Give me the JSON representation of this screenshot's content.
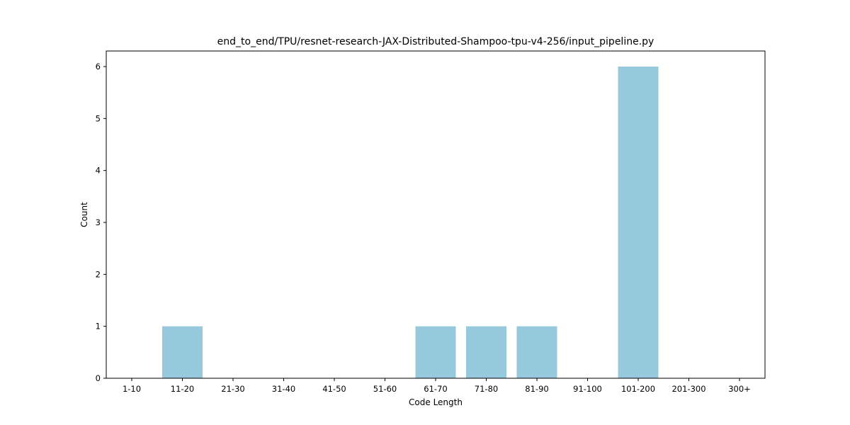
{
  "chart_data": {
    "type": "bar",
    "title": "end_to_end/TPU/resnet-research-JAX-Distributed-Shampoo-tpu-v4-256/input_pipeline.py",
    "xlabel": "Code Length",
    "ylabel": "Count",
    "categories": [
      "1-10",
      "11-20",
      "21-30",
      "31-40",
      "41-50",
      "51-60",
      "61-70",
      "71-80",
      "81-90",
      "91-100",
      "101-200",
      "201-300",
      "300+"
    ],
    "values": [
      0,
      1,
      0,
      0,
      0,
      0,
      1,
      1,
      1,
      0,
      6,
      0,
      0
    ],
    "ylim": [
      0,
      6.3
    ],
    "yticks": [
      0,
      1,
      2,
      3,
      4,
      5,
      6
    ],
    "bar_color": "#96c9dc",
    "grid": false,
    "legend": "none"
  }
}
